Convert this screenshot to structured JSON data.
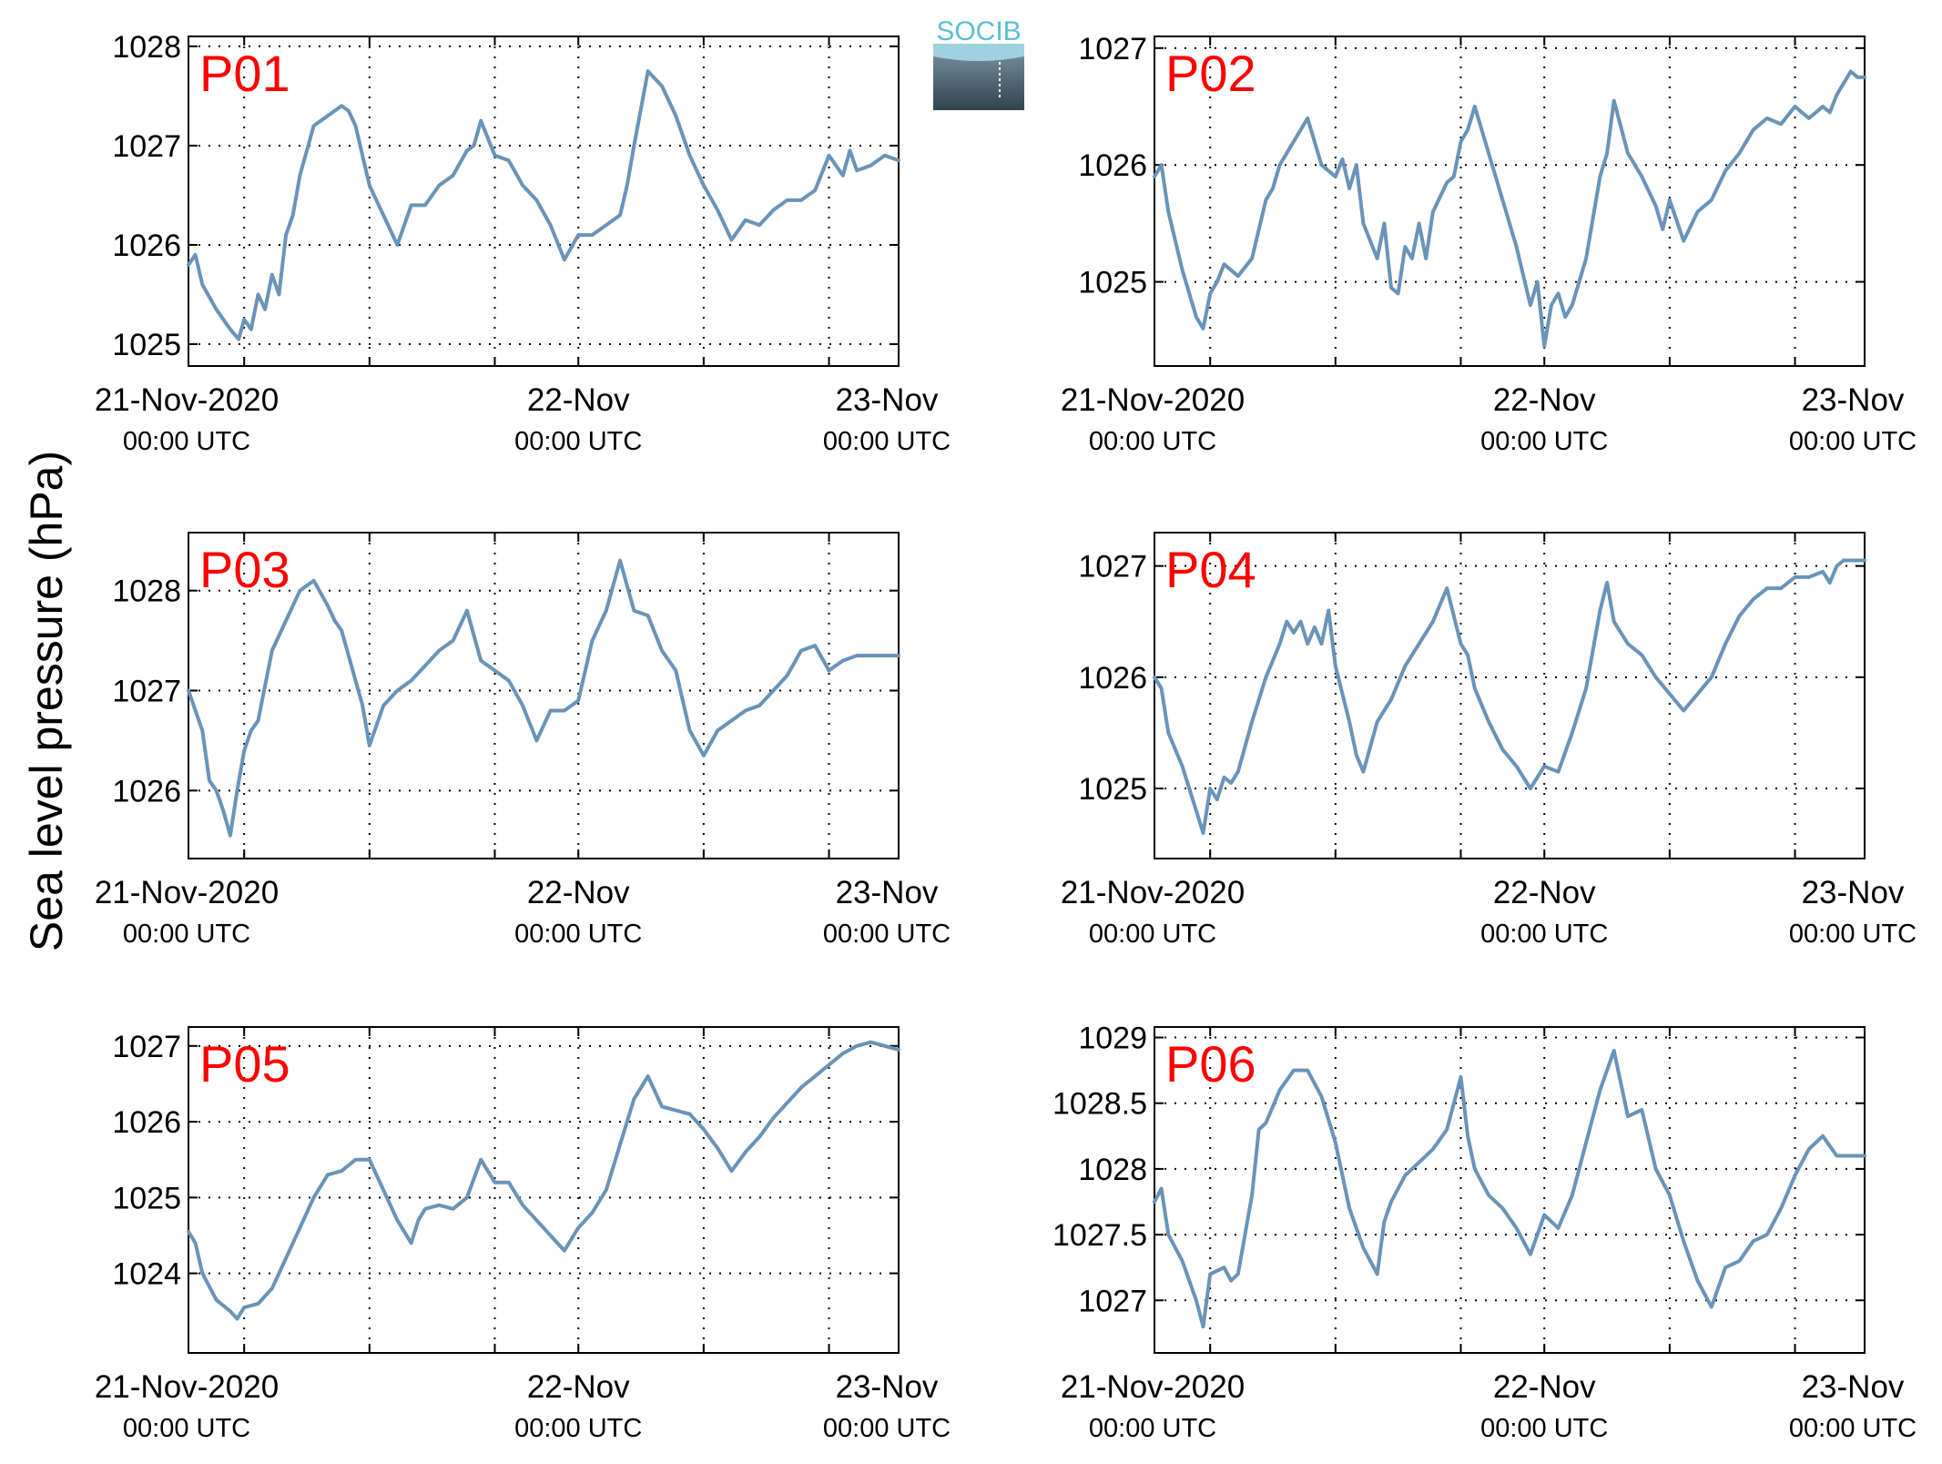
{
  "figure": {
    "ylabel": "Sea level pressure (hPa)",
    "logo_text": "SOCIB",
    "line_color": "#6a93b8",
    "panel_label_color": "#ff0000",
    "grid_style": "dotted"
  },
  "chart_data": [
    {
      "type": "line",
      "panel": "P01",
      "title": "",
      "xlabel": "",
      "ylabel": "",
      "x_unit": "hours since 20-Nov-2020 21:00 UTC",
      "xlim": [
        0,
        51
      ],
      "ylim": [
        1024.78,
        1028.1
      ],
      "yticks": [
        1025,
        1026,
        1027,
        1028
      ],
      "xticks": [
        {
          "top": "21-Nov-2020",
          "bottom": "00:00 UTC"
        },
        {
          "top": "22-Nov",
          "bottom": "00:00 UTC"
        },
        {
          "top": "23-Nov",
          "bottom": "00:00 UTC"
        }
      ],
      "grid": true,
      "series": [
        {
          "name": "",
          "x": [
            0,
            0.5,
            1,
            2,
            3,
            3.6,
            4,
            4.5,
            5,
            5.5,
            6,
            6.5,
            7,
            7.5,
            8,
            9,
            10,
            11,
            11.5,
            12,
            13,
            14,
            15,
            16,
            17,
            18,
            19,
            20,
            20.5,
            21,
            22,
            23,
            24,
            25,
            26,
            27,
            28,
            29,
            30,
            31,
            31.5,
            32,
            33,
            34,
            35,
            36,
            37,
            38,
            39,
            40,
            41,
            42,
            43,
            44,
            45,
            46,
            47,
            47.5,
            48,
            49,
            50,
            51
          ],
          "y": [
            1025.8,
            1025.9,
            1025.6,
            1025.35,
            1025.15,
            1025.05,
            1025.25,
            1025.15,
            1025.5,
            1025.35,
            1025.7,
            1025.5,
            1026.1,
            1026.3,
            1026.7,
            1027.2,
            1027.3,
            1027.4,
            1027.35,
            1027.2,
            1026.6,
            1026.3,
            1026.0,
            1026.4,
            1026.4,
            1026.6,
            1026.7,
            1026.95,
            1027.0,
            1027.25,
            1026.9,
            1026.85,
            1026.6,
            1026.45,
            1026.2,
            1025.85,
            1026.1,
            1026.1,
            1026.2,
            1026.3,
            1026.6,
            1027.0,
            1027.75,
            1027.6,
            1027.3,
            1026.9,
            1026.6,
            1026.35,
            1026.05,
            1026.25,
            1026.2,
            1026.35,
            1026.45,
            1026.45,
            1026.55,
            1026.9,
            1026.7,
            1026.95,
            1026.75,
            1026.8,
            1026.9,
            1026.85
          ]
        }
      ]
    },
    {
      "type": "line",
      "panel": "P02",
      "title": "",
      "xlabel": "",
      "ylabel": "",
      "x_unit": "hours since 20-Nov-2020 21:00 UTC",
      "xlim": [
        0,
        51
      ],
      "ylim": [
        1024.28,
        1027.1
      ],
      "yticks": [
        1025,
        1026,
        1027
      ],
      "xticks": [
        {
          "top": "21-Nov-2020",
          "bottom": "00:00 UTC"
        },
        {
          "top": "22-Nov",
          "bottom": "00:00 UTC"
        },
        {
          "top": "23-Nov",
          "bottom": "00:00 UTC"
        }
      ],
      "grid": true,
      "series": [
        {
          "name": "",
          "x": [
            0,
            0.5,
            1,
            2,
            3,
            3.5,
            4,
            4.5,
            5,
            6,
            7,
            8,
            8.5,
            9,
            10,
            11,
            12,
            13,
            13.5,
            14,
            14.5,
            15,
            16,
            16.5,
            17,
            17.5,
            18,
            18.5,
            19,
            19.5,
            20,
            21,
            21.5,
            22,
            22.5,
            23,
            24,
            25,
            26,
            27,
            27.5,
            28,
            28.5,
            29,
            29.5,
            30,
            31,
            32,
            32.5,
            33,
            34,
            35,
            36,
            36.5,
            37,
            38,
            39,
            40,
            41,
            42,
            43,
            44,
            45,
            46,
            47,
            48,
            48.5,
            49,
            49.5,
            50,
            50.5,
            51
          ],
          "y": [
            1025.9,
            1026.0,
            1025.6,
            1025.1,
            1024.7,
            1024.6,
            1024.9,
            1025.0,
            1025.15,
            1025.05,
            1025.2,
            1025.7,
            1025.8,
            1026.0,
            1026.2,
            1026.4,
            1026.0,
            1025.9,
            1026.05,
            1025.8,
            1026.0,
            1025.5,
            1025.2,
            1025.5,
            1024.95,
            1024.9,
            1025.3,
            1025.2,
            1025.5,
            1025.2,
            1025.6,
            1025.85,
            1025.9,
            1026.2,
            1026.3,
            1026.5,
            1026.1,
            1025.7,
            1025.3,
            1024.8,
            1025.0,
            1024.45,
            1024.8,
            1024.9,
            1024.7,
            1024.8,
            1025.2,
            1025.9,
            1026.1,
            1026.55,
            1026.1,
            1025.9,
            1025.65,
            1025.45,
            1025.7,
            1025.35,
            1025.6,
            1025.7,
            1025.95,
            1026.1,
            1026.3,
            1026.4,
            1026.35,
            1026.5,
            1026.4,
            1026.5,
            1026.45,
            1026.6,
            1026.7,
            1026.8,
            1026.75,
            1026.75
          ]
        }
      ]
    },
    {
      "type": "line",
      "panel": "P03",
      "title": "",
      "xlabel": "",
      "ylabel": "",
      "x_unit": "hours since 20-Nov-2020 21:00 UTC",
      "xlim": [
        0,
        51
      ],
      "ylim": [
        1025.32,
        1028.58
      ],
      "yticks": [
        1026,
        1027,
        1028
      ],
      "xticks": [
        {
          "top": "21-Nov-2020",
          "bottom": "00:00 UTC"
        },
        {
          "top": "22-Nov",
          "bottom": "00:00 UTC"
        },
        {
          "top": "23-Nov",
          "bottom": "00:00 UTC"
        }
      ],
      "grid": true,
      "series": [
        {
          "name": "",
          "x": [
            0,
            0.5,
            1,
            1.5,
            2,
            2.5,
            3,
            3.5,
            4,
            4.5,
            5,
            6,
            7,
            8,
            9,
            10,
            10.5,
            11,
            12,
            12.5,
            13,
            14,
            15,
            16,
            17,
            18,
            19,
            20,
            21,
            22,
            22.5,
            23,
            24,
            25,
            26,
            27,
            28,
            29,
            30,
            31,
            32,
            33,
            34,
            35,
            35.5,
            36,
            37,
            38,
            39,
            40,
            41,
            42,
            43,
            44,
            45,
            46,
            47,
            48,
            49,
            50,
            51
          ],
          "y": [
            1027.0,
            1026.8,
            1026.6,
            1026.1,
            1026.0,
            1025.8,
            1025.55,
            1026.0,
            1026.4,
            1026.6,
            1026.7,
            1027.4,
            1027.7,
            1028.0,
            1028.1,
            1027.85,
            1027.7,
            1027.6,
            1027.1,
            1026.85,
            1026.45,
            1026.85,
            1027.0,
            1027.1,
            1027.25,
            1027.4,
            1027.5,
            1027.8,
            1027.3,
            1027.2,
            1027.15,
            1027.1,
            1026.85,
            1026.5,
            1026.8,
            1026.8,
            1026.9,
            1027.5,
            1027.8,
            1028.3,
            1027.8,
            1027.75,
            1027.4,
            1027.2,
            1026.9,
            1026.6,
            1026.35,
            1026.6,
            1026.7,
            1026.8,
            1026.85,
            1027.0,
            1027.15,
            1027.4,
            1027.45,
            1027.2,
            1027.3,
            1027.35,
            1027.35,
            1027.35,
            1027.35
          ]
        }
      ]
    },
    {
      "type": "line",
      "panel": "P04",
      "title": "",
      "xlabel": "",
      "ylabel": "",
      "x_unit": "hours since 20-Nov-2020 21:00 UTC",
      "xlim": [
        0,
        51
      ],
      "ylim": [
        1024.37,
        1027.3
      ],
      "yticks": [
        1025,
        1026,
        1027
      ],
      "xticks": [
        {
          "top": "21-Nov-2020",
          "bottom": "00:00 UTC"
        },
        {
          "top": "22-Nov",
          "bottom": "00:00 UTC"
        },
        {
          "top": "23-Nov",
          "bottom": "00:00 UTC"
        }
      ],
      "grid": true,
      "series": [
        {
          "name": "",
          "x": [
            0,
            0.5,
            1,
            2,
            3,
            3.5,
            4,
            4.5,
            5,
            5.5,
            6,
            7,
            8,
            9,
            9.5,
            10,
            10.5,
            11,
            11.5,
            12,
            12.5,
            13,
            14,
            14.5,
            15,
            16,
            17,
            18,
            19,
            20,
            21,
            22,
            22.5,
            23,
            24,
            25,
            26,
            27,
            28,
            29,
            30,
            31,
            32,
            32.5,
            33,
            34,
            35,
            36,
            37,
            38,
            39,
            40,
            41,
            42,
            43,
            44,
            45,
            46,
            47,
            48,
            48.5,
            49,
            49.5,
            50,
            51
          ],
          "y": [
            1026.0,
            1025.9,
            1025.5,
            1025.2,
            1024.8,
            1024.6,
            1025.0,
            1024.9,
            1025.1,
            1025.05,
            1025.15,
            1025.6,
            1026.0,
            1026.3,
            1026.5,
            1026.4,
            1026.5,
            1026.3,
            1026.45,
            1026.3,
            1026.6,
            1026.1,
            1025.6,
            1025.3,
            1025.15,
            1025.6,
            1025.8,
            1026.1,
            1026.3,
            1026.5,
            1026.8,
            1026.3,
            1026.2,
            1025.9,
            1025.6,
            1025.35,
            1025.2,
            1025.0,
            1025.2,
            1025.15,
            1025.5,
            1025.9,
            1026.6,
            1026.85,
            1026.5,
            1026.3,
            1026.2,
            1026.0,
            1025.85,
            1025.7,
            1025.85,
            1026.0,
            1026.3,
            1026.55,
            1026.7,
            1026.8,
            1026.8,
            1026.9,
            1026.9,
            1026.95,
            1026.85,
            1027.0,
            1027.05,
            1027.05,
            1027.05
          ]
        }
      ]
    },
    {
      "type": "line",
      "panel": "P05",
      "title": "",
      "xlabel": "",
      "ylabel": "",
      "x_unit": "hours since 20-Nov-2020 21:00 UTC",
      "xlim": [
        0,
        51
      ],
      "ylim": [
        1022.95,
        1027.25
      ],
      "yticks": [
        1024,
        1025,
        1026,
        1027
      ],
      "xticks": [
        {
          "top": "21-Nov-2020",
          "bottom": "00:00 UTC"
        },
        {
          "top": "22-Nov",
          "bottom": "00:00 UTC"
        },
        {
          "top": "23-Nov",
          "bottom": "00:00 UTC"
        }
      ],
      "grid": true,
      "series": [
        {
          "name": "",
          "x": [
            0,
            0.5,
            1,
            2,
            3,
            3.5,
            4,
            5,
            6,
            7,
            8,
            9,
            10,
            11,
            12,
            13,
            14,
            15,
            16,
            16.5,
            17,
            18,
            19,
            20,
            21,
            22,
            23,
            24,
            25,
            26,
            27,
            28,
            29,
            30,
            31,
            32,
            33,
            34,
            35,
            36,
            37,
            38,
            39,
            40,
            41,
            42,
            43,
            44,
            45,
            46,
            47,
            48,
            49,
            50,
            51
          ],
          "y": [
            1024.55,
            1024.4,
            1024.0,
            1023.65,
            1023.5,
            1023.4,
            1023.55,
            1023.6,
            1023.8,
            1024.2,
            1024.6,
            1025.0,
            1025.3,
            1025.35,
            1025.5,
            1025.5,
            1025.1,
            1024.7,
            1024.4,
            1024.7,
            1024.85,
            1024.9,
            1024.85,
            1025.0,
            1025.5,
            1025.2,
            1025.2,
            1024.9,
            1024.7,
            1024.5,
            1024.3,
            1024.6,
            1024.8,
            1025.1,
            1025.7,
            1026.3,
            1026.6,
            1026.2,
            1026.15,
            1026.1,
            1025.9,
            1025.65,
            1025.35,
            1025.6,
            1025.8,
            1026.05,
            1026.25,
            1026.45,
            1026.6,
            1026.75,
            1026.9,
            1027.0,
            1027.05,
            1027.0,
            1026.95
          ]
        }
      ]
    },
    {
      "type": "line",
      "panel": "P06",
      "title": "",
      "xlabel": "",
      "ylabel": "",
      "x_unit": "hours since 20-Nov-2020 21:00 UTC",
      "xlim": [
        0,
        51
      ],
      "ylim": [
        1026.6,
        1029.08
      ],
      "yticks": [
        1027,
        1027.5,
        1028,
        1028.5,
        1029
      ],
      "ytick_labels": [
        "1027",
        "1027.5",
        "1028",
        "1028.5",
        "1029"
      ],
      "xticks": [
        {
          "top": "21-Nov-2020",
          "bottom": "00:00 UTC"
        },
        {
          "top": "22-Nov",
          "bottom": "00:00 UTC"
        },
        {
          "top": "23-Nov",
          "bottom": "00:00 UTC"
        }
      ],
      "grid": true,
      "series": [
        {
          "name": "",
          "x": [
            0,
            0.5,
            1,
            2,
            3,
            3.5,
            4,
            5,
            5.5,
            6,
            7,
            7.5,
            8,
            9,
            10,
            11,
            12,
            13,
            14,
            15,
            16,
            16.5,
            17,
            18,
            19,
            20,
            21,
            22,
            22.5,
            23,
            24,
            25,
            26,
            27,
            28,
            29,
            30,
            31,
            32,
            33,
            34,
            35,
            36,
            37,
            38,
            39,
            40,
            41,
            42,
            43,
            44,
            45,
            46,
            47,
            48,
            49,
            50,
            51
          ],
          "y": [
            1027.75,
            1027.85,
            1027.5,
            1027.3,
            1027.0,
            1026.8,
            1027.2,
            1027.25,
            1027.15,
            1027.2,
            1027.8,
            1028.3,
            1028.35,
            1028.6,
            1028.75,
            1028.75,
            1028.55,
            1028.2,
            1027.7,
            1027.4,
            1027.2,
            1027.6,
            1027.75,
            1027.95,
            1028.05,
            1028.15,
            1028.3,
            1028.7,
            1028.25,
            1028.0,
            1027.8,
            1027.7,
            1027.55,
            1027.35,
            1027.65,
            1027.55,
            1027.8,
            1028.2,
            1028.6,
            1028.9,
            1028.4,
            1028.45,
            1028.0,
            1027.8,
            1027.45,
            1027.15,
            1026.95,
            1027.25,
            1027.3,
            1027.45,
            1027.5,
            1027.7,
            1027.95,
            1028.15,
            1028.25,
            1028.1,
            1028.1,
            1028.1
          ]
        }
      ]
    }
  ]
}
